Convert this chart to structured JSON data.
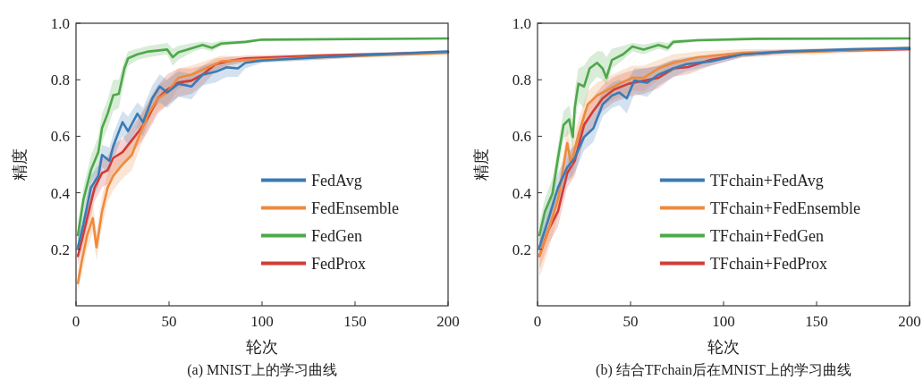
{
  "chart_data": [
    {
      "type": "line",
      "title": "(a) MNIST上的学习曲线",
      "xlabel": "轮次",
      "ylabel": "精度",
      "xlim": [
        0,
        200
      ],
      "ylim": [
        0,
        1
      ],
      "xticks": [
        0,
        50,
        100,
        150,
        200
      ],
      "yticks": [
        0.2,
        0.4,
        0.6,
        0.8,
        {
          "value": 1.0,
          "label": "1.0"
        }
      ],
      "legend": "bottom right",
      "grid": false,
      "series": [
        {
          "name": "FedAvg",
          "color": "#3a7bb5",
          "x": [
            1,
            4,
            8,
            12,
            14,
            18,
            20,
            25,
            28,
            33,
            36,
            41,
            45,
            49,
            55,
            62,
            68,
            75,
            81,
            87,
            91,
            100,
            132,
            164,
            200
          ],
          "values": [
            0.207,
            0.29,
            0.418,
            0.46,
            0.534,
            0.513,
            0.565,
            0.65,
            0.618,
            0.68,
            0.65,
            0.734,
            0.776,
            0.755,
            0.786,
            0.776,
            0.818,
            0.828,
            0.844,
            0.84,
            0.86,
            0.868,
            0.88,
            0.89,
            0.9
          ],
          "lower": [
            0.17,
            0.25,
            0.37,
            0.42,
            0.49,
            0.47,
            0.52,
            0.6,
            0.57,
            0.63,
            0.6,
            0.69,
            0.72,
            0.7,
            0.74,
            0.73,
            0.78,
            0.79,
            0.81,
            0.81,
            0.84,
            0.86,
            0.87,
            0.885,
            0.895
          ],
          "upper": [
            0.24,
            0.33,
            0.46,
            0.5,
            0.57,
            0.56,
            0.61,
            0.69,
            0.67,
            0.72,
            0.7,
            0.78,
            0.82,
            0.8,
            0.83,
            0.82,
            0.85,
            0.86,
            0.87,
            0.87,
            0.875,
            0.876,
            0.889,
            0.897,
            0.905
          ]
        },
        {
          "name": "FedEnsemble",
          "color": "#ef8a3c",
          "x": [
            1,
            3,
            6,
            9,
            11,
            14,
            17,
            20,
            25,
            30,
            35,
            39,
            44,
            49,
            55,
            62,
            71,
            78,
            91,
            132,
            200
          ],
          "values": [
            0.08,
            0.155,
            0.25,
            0.31,
            0.207,
            0.334,
            0.418,
            0.46,
            0.5,
            0.534,
            0.618,
            0.68,
            0.734,
            0.755,
            0.807,
            0.818,
            0.844,
            0.865,
            0.87,
            0.88,
            0.895
          ],
          "lower": [
            0.05,
            0.11,
            0.2,
            0.26,
            0.16,
            0.28,
            0.37,
            0.41,
            0.45,
            0.48,
            0.57,
            0.63,
            0.69,
            0.71,
            0.77,
            0.79,
            0.82,
            0.845,
            0.86,
            0.872,
            0.89
          ],
          "upper": [
            0.12,
            0.2,
            0.3,
            0.36,
            0.26,
            0.39,
            0.47,
            0.51,
            0.55,
            0.59,
            0.67,
            0.73,
            0.78,
            0.8,
            0.84,
            0.85,
            0.87,
            0.885,
            0.88,
            0.888,
            0.9
          ]
        },
        {
          "name": "FedGen",
          "color": "#4ea84a",
          "x": [
            1,
            4,
            8,
            12,
            14,
            17,
            20,
            23,
            26,
            28,
            33,
            39,
            49,
            52,
            55,
            63,
            68,
            73,
            78,
            91,
            100,
            200
          ],
          "values": [
            0.25,
            0.376,
            0.48,
            0.544,
            0.63,
            0.68,
            0.745,
            0.75,
            0.84,
            0.876,
            0.89,
            0.9,
            0.907,
            0.88,
            0.897,
            0.913,
            0.923,
            0.913,
            0.928,
            0.934,
            0.942,
            0.946
          ],
          "lower": [
            0.21,
            0.33,
            0.43,
            0.49,
            0.58,
            0.63,
            0.69,
            0.7,
            0.8,
            0.85,
            0.87,
            0.88,
            0.89,
            0.85,
            0.87,
            0.9,
            0.91,
            0.9,
            0.92,
            0.928,
            0.938,
            0.943
          ],
          "upper": [
            0.29,
            0.42,
            0.53,
            0.6,
            0.68,
            0.73,
            0.8,
            0.8,
            0.87,
            0.9,
            0.91,
            0.92,
            0.93,
            0.91,
            0.92,
            0.93,
            0.935,
            0.93,
            0.938,
            0.94,
            0.946,
            0.949
          ]
        },
        {
          "name": "FedProx",
          "color": "#d23c37",
          "x": [
            1,
            3,
            6,
            10,
            14,
            17,
            20,
            25,
            30,
            35,
            39,
            44,
            49,
            55,
            62,
            68,
            75,
            81,
            91,
            132,
            200
          ],
          "values": [
            0.176,
            0.228,
            0.31,
            0.418,
            0.47,
            0.48,
            0.523,
            0.544,
            0.586,
            0.628,
            0.67,
            0.734,
            0.765,
            0.79,
            0.797,
            0.818,
            0.855,
            0.865,
            0.876,
            0.886,
            0.897
          ],
          "lower": [
            0.14,
            0.19,
            0.27,
            0.37,
            0.42,
            0.43,
            0.47,
            0.5,
            0.54,
            0.58,
            0.62,
            0.68,
            0.71,
            0.74,
            0.75,
            0.78,
            0.83,
            0.85,
            0.866,
            0.88,
            0.892
          ],
          "upper": [
            0.21,
            0.27,
            0.35,
            0.46,
            0.52,
            0.53,
            0.57,
            0.59,
            0.63,
            0.68,
            0.72,
            0.78,
            0.82,
            0.84,
            0.84,
            0.85,
            0.875,
            0.88,
            0.886,
            0.892,
            0.902
          ]
        }
      ]
    },
    {
      "type": "line",
      "title": "(b) 结合TFchain后在MNIST上的学习曲线",
      "xlabel": "轮次",
      "ylabel": "精度",
      "xlim": [
        0,
        200
      ],
      "ylim": [
        0,
        1
      ],
      "xticks": [
        0,
        50,
        100,
        150,
        200
      ],
      "yticks": [
        0.2,
        0.4,
        0.6,
        0.8,
        {
          "value": 1.0,
          "label": "1.0"
        }
      ],
      "legend": "bottom right",
      "grid": false,
      "series": [
        {
          "name": "TFchain+FedAvg",
          "color": "#3a7bb5",
          "x": [
            1,
            6,
            11,
            16,
            20,
            25,
            30,
            35,
            40,
            44,
            48,
            52,
            59,
            65,
            73,
            80,
            93,
            110,
            134,
            166,
            200
          ],
          "values": [
            0.207,
            0.31,
            0.418,
            0.49,
            0.523,
            0.597,
            0.628,
            0.713,
            0.744,
            0.755,
            0.734,
            0.797,
            0.79,
            0.818,
            0.84,
            0.855,
            0.865,
            0.89,
            0.9,
            0.907,
            0.912
          ],
          "lower": [
            0.17,
            0.26,
            0.37,
            0.44,
            0.47,
            0.55,
            0.58,
            0.67,
            0.7,
            0.71,
            0.68,
            0.75,
            0.74,
            0.78,
            0.81,
            0.83,
            0.85,
            0.88,
            0.893,
            0.9,
            0.906
          ],
          "upper": [
            0.24,
            0.36,
            0.47,
            0.54,
            0.57,
            0.65,
            0.68,
            0.76,
            0.79,
            0.8,
            0.79,
            0.84,
            0.84,
            0.85,
            0.87,
            0.88,
            0.885,
            0.9,
            0.907,
            0.914,
            0.918
          ]
        },
        {
          "name": "TFchain+FedEnsemble",
          "color": "#ef8a3c",
          "x": [
            1,
            6,
            11,
            16,
            18,
            22,
            27,
            32,
            38,
            44,
            51,
            57,
            65,
            73,
            86,
            110,
            150,
            200
          ],
          "values": [
            0.176,
            0.27,
            0.376,
            0.576,
            0.5,
            0.607,
            0.713,
            0.744,
            0.765,
            0.786,
            0.807,
            0.807,
            0.84,
            0.86,
            0.88,
            0.895,
            0.9,
            0.912
          ],
          "lower": [
            0.1,
            0.2,
            0.32,
            0.52,
            0.44,
            0.55,
            0.66,
            0.7,
            0.72,
            0.74,
            0.76,
            0.76,
            0.8,
            0.83,
            0.86,
            0.88,
            0.89,
            0.905
          ],
          "upper": [
            0.24,
            0.33,
            0.43,
            0.63,
            0.56,
            0.66,
            0.76,
            0.79,
            0.81,
            0.83,
            0.85,
            0.85,
            0.87,
            0.89,
            0.9,
            0.908,
            0.91,
            0.918
          ]
        },
        {
          "name": "TFchain+FedGen",
          "color": "#4ea84a",
          "x": [
            1,
            4,
            8,
            11,
            14,
            17,
            19,
            20,
            22,
            25,
            28,
            32,
            35,
            37,
            40,
            46,
            51,
            57,
            65,
            70,
            73,
            86,
            118,
            200
          ],
          "values": [
            0.25,
            0.334,
            0.397,
            0.523,
            0.64,
            0.66,
            0.597,
            0.7,
            0.786,
            0.776,
            0.84,
            0.86,
            0.84,
            0.807,
            0.87,
            0.89,
            0.918,
            0.907,
            0.923,
            0.913,
            0.934,
            0.94,
            0.945,
            0.946
          ],
          "lower": [
            0.21,
            0.29,
            0.35,
            0.47,
            0.59,
            0.61,
            0.55,
            0.64,
            0.72,
            0.7,
            0.78,
            0.81,
            0.8,
            0.78,
            0.84,
            0.87,
            0.9,
            0.89,
            0.91,
            0.9,
            0.925,
            0.935,
            0.94,
            0.943
          ],
          "upper": [
            0.29,
            0.38,
            0.45,
            0.57,
            0.69,
            0.71,
            0.65,
            0.76,
            0.84,
            0.85,
            0.88,
            0.9,
            0.9,
            0.88,
            0.91,
            0.92,
            0.93,
            0.925,
            0.935,
            0.93,
            0.942,
            0.945,
            0.949,
            0.95
          ]
        },
        {
          "name": "TFchain+FedProx",
          "color": "#d23c37",
          "x": [
            1,
            6,
            11,
            16,
            20,
            25,
            30,
            35,
            41,
            49,
            57,
            65,
            73,
            81,
            93,
            110,
            134,
            200
          ],
          "values": [
            0.176,
            0.27,
            0.334,
            0.47,
            0.513,
            0.64,
            0.69,
            0.734,
            0.765,
            0.786,
            0.797,
            0.807,
            0.84,
            0.845,
            0.87,
            0.89,
            0.9,
            0.908
          ],
          "lower": [
            0.13,
            0.22,
            0.28,
            0.42,
            0.46,
            0.59,
            0.64,
            0.69,
            0.72,
            0.74,
            0.75,
            0.77,
            0.81,
            0.82,
            0.85,
            0.88,
            0.893,
            0.902
          ],
          "upper": [
            0.22,
            0.32,
            0.39,
            0.52,
            0.57,
            0.69,
            0.74,
            0.78,
            0.81,
            0.83,
            0.84,
            0.85,
            0.87,
            0.87,
            0.89,
            0.9,
            0.907,
            0.914
          ]
        }
      ]
    }
  ]
}
